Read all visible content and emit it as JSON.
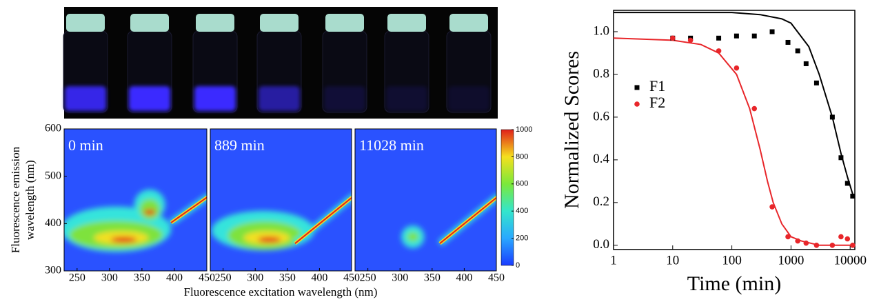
{
  "chart_data": [
    {
      "type": "contour",
      "label": "0 min",
      "xlim": [
        230,
        450
      ],
      "ylim": [
        300,
        600
      ],
      "xticks": [
        250,
        300,
        350,
        400,
        450
      ],
      "yticks": [
        300,
        400,
        500,
        600
      ],
      "ylabel": [
        "Fluorescence emission",
        "wavelength (nm)"
      ]
    },
    {
      "type": "contour",
      "label": "889 min",
      "xlim": [
        230,
        450
      ],
      "ylim": [
        300,
        600
      ],
      "xticks": [
        250,
        300,
        350,
        400,
        450
      ],
      "xlabel": "Fluorescence excitation wavelength (nm)"
    },
    {
      "type": "contour",
      "label": "11028 min",
      "xlim": [
        230,
        450
      ],
      "ylim": [
        300,
        600
      ],
      "xticks": [
        250,
        300,
        350,
        400,
        450
      ]
    },
    {
      "type": "colorbar",
      "zlim": [
        0,
        1000
      ],
      "zticks": [
        0,
        200,
        400,
        600,
        800,
        1000
      ]
    },
    {
      "type": "scatter",
      "xlabel": "Time (min)",
      "ylabel": "Normalized Scores",
      "xscale": "log",
      "xlim": [
        1,
        12000
      ],
      "ylim": [
        -0.02,
        1.1
      ],
      "legend": "upper left",
      "xticks": [
        1,
        10,
        100,
        1000,
        10000
      ],
      "yticks": [
        {
          "value": 0,
          "label": "0.0"
        },
        {
          "value": 0.2,
          "label": "0.2"
        },
        {
          "value": 0.4,
          "label": "0.4"
        },
        {
          "value": 0.6,
          "label": "0.6"
        },
        {
          "value": 0.8,
          "label": "0.8"
        },
        {
          "value": 1,
          "label": "1.0"
        }
      ],
      "x": [
        10,
        20,
        60,
        120,
        240,
        480,
        889,
        1300,
        1800,
        2700,
        5000,
        7000,
        9000,
        11028
      ],
      "series": [
        {
          "name": "F1",
          "color": "#000000",
          "marker": "square",
          "values": [
            0.97,
            0.97,
            0.97,
            0.98,
            0.98,
            1.0,
            0.95,
            0.91,
            0.85,
            0.76,
            0.6,
            0.41,
            0.29,
            0.23
          ]
        },
        {
          "name": "F2",
          "color": "#e8262a",
          "marker": "circle",
          "values": [
            0.97,
            0.96,
            0.91,
            0.83,
            0.64,
            0.18,
            0.04,
            0.02,
            0.01,
            0.0,
            0.0,
            0.04,
            0.03,
            0.0
          ]
        }
      ],
      "fits": [
        {
          "color": "#000000",
          "x": [
            1,
            10,
            100,
            300,
            700,
            1000,
            2000,
            3000,
            5000,
            7000,
            9000,
            11028
          ],
          "values": [
            1.09,
            1.09,
            1.09,
            1.08,
            1.06,
            1.04,
            0.93,
            0.8,
            0.6,
            0.43,
            0.32,
            0.24
          ]
        },
        {
          "color": "#e8262a",
          "x": [
            1,
            10,
            30,
            60,
            120,
            200,
            300,
            400,
            500,
            700,
            1000,
            1500,
            3000,
            11028
          ],
          "values": [
            0.97,
            0.96,
            0.94,
            0.9,
            0.8,
            0.64,
            0.45,
            0.3,
            0.2,
            0.1,
            0.04,
            0.02,
            0.0,
            0.0
          ]
        }
      ]
    }
  ]
}
